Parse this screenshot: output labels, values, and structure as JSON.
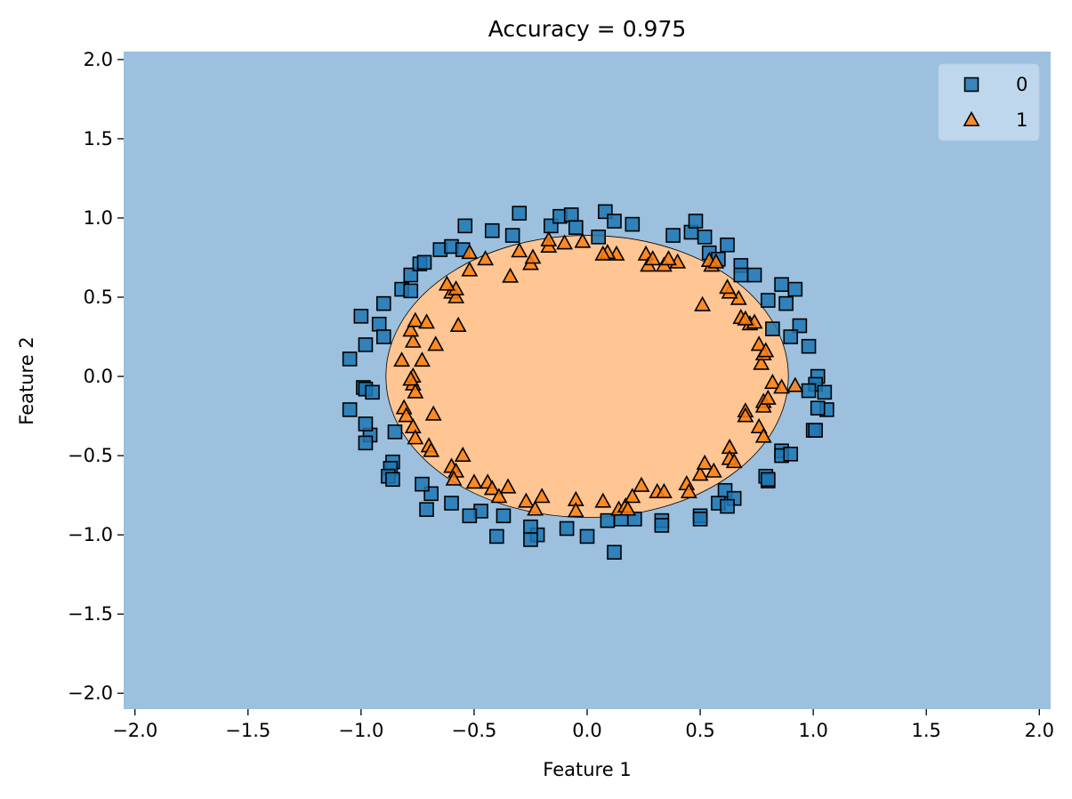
{
  "chart_data": {
    "type": "scatter",
    "title": "Accuracy = 0.975",
    "xlabel": "Feature 1",
    "ylabel": "Feature 2",
    "xlim": [
      -2.05,
      2.05
    ],
    "ylim": [
      -2.1,
      2.05
    ],
    "xticks": [
      "−2.0",
      "−1.5",
      "−1.0",
      "−0.5",
      "0.0",
      "0.5",
      "1.0",
      "1.5",
      "2.0"
    ],
    "xtick_values": [
      -2.0,
      -1.5,
      -1.0,
      -0.5,
      0.0,
      0.5,
      1.0,
      1.5,
      2.0
    ],
    "yticks": [
      "−2.0",
      "−1.5",
      "−1.0",
      "−0.5",
      "0.0",
      "0.5",
      "1.0",
      "1.5",
      "2.0"
    ],
    "ytick_values": [
      -2.0,
      -1.5,
      -1.0,
      -0.5,
      0.0,
      0.5,
      1.0,
      1.5,
      2.0
    ],
    "grid": false,
    "legend_position": "top-right",
    "decision_regions": {
      "background_class": "0",
      "background_color": "#9cc0de",
      "inner_class": "1",
      "inner_color": "#ffc592",
      "inner_shape": "ellipse",
      "center": [
        0.0,
        0.0
      ],
      "radius_x": 0.89,
      "radius_y": 0.89
    },
    "series": [
      {
        "name": "0",
        "marker": "square",
        "color": "#1f77b4",
        "points": [
          [
            -1.05,
            0.11
          ],
          [
            -1.0,
            0.38
          ],
          [
            -0.98,
            0.2
          ],
          [
            -0.9,
            0.46
          ],
          [
            -0.92,
            0.33
          ],
          [
            -0.9,
            0.25
          ],
          [
            -0.82,
            0.55
          ],
          [
            -0.78,
            0.64
          ],
          [
            -0.78,
            0.54
          ],
          [
            -0.74,
            0.71
          ],
          [
            -0.72,
            0.72
          ],
          [
            -0.65,
            0.8
          ],
          [
            -0.6,
            0.82
          ],
          [
            -0.55,
            0.8
          ],
          [
            -0.54,
            0.95
          ],
          [
            -0.42,
            0.92
          ],
          [
            -0.33,
            0.89
          ],
          [
            -0.3,
            1.03
          ],
          [
            -0.16,
            0.95
          ],
          [
            -0.12,
            1.01
          ],
          [
            -0.07,
            1.02
          ],
          [
            -0.05,
            0.94
          ],
          [
            0.05,
            0.88
          ],
          [
            0.08,
            1.04
          ],
          [
            0.12,
            0.98
          ],
          [
            0.2,
            0.96
          ],
          [
            0.38,
            0.89
          ],
          [
            0.46,
            0.91
          ],
          [
            0.48,
            0.98
          ],
          [
            0.52,
            0.88
          ],
          [
            0.54,
            0.78
          ],
          [
            0.58,
            0.74
          ],
          [
            0.62,
            0.83
          ],
          [
            0.68,
            0.7
          ],
          [
            0.74,
            0.64
          ],
          [
            0.68,
            0.64
          ],
          [
            0.8,
            0.48
          ],
          [
            0.86,
            0.58
          ],
          [
            0.92,
            0.55
          ],
          [
            0.88,
            0.46
          ],
          [
            0.82,
            0.3
          ],
          [
            0.94,
            0.32
          ],
          [
            0.9,
            0.25
          ],
          [
            0.98,
            0.19
          ],
          [
            1.02,
            0.0
          ],
          [
            1.01,
            -0.05
          ],
          [
            0.98,
            -0.09
          ],
          [
            1.05,
            -0.1
          ],
          [
            1.06,
            -0.21
          ],
          [
            1.02,
            -0.2
          ],
          [
            1.0,
            -0.34
          ],
          [
            1.01,
            -0.34
          ],
          [
            0.86,
            -0.47
          ],
          [
            0.86,
            -0.5
          ],
          [
            0.9,
            -0.49
          ],
          [
            0.79,
            -0.63
          ],
          [
            0.8,
            -0.66
          ],
          [
            0.8,
            -0.65
          ],
          [
            0.61,
            -0.72
          ],
          [
            0.65,
            -0.77
          ],
          [
            0.58,
            -0.8
          ],
          [
            0.62,
            -0.82
          ],
          [
            0.5,
            -0.88
          ],
          [
            0.5,
            -0.9
          ],
          [
            0.33,
            -0.91
          ],
          [
            0.33,
            -0.94
          ],
          [
            0.21,
            -0.9
          ],
          [
            0.15,
            -0.9
          ],
          [
            0.09,
            -0.91
          ],
          [
            0.12,
            -1.11
          ],
          [
            0.0,
            -1.01
          ],
          [
            -0.09,
            -0.96
          ],
          [
            -0.22,
            -1.0
          ],
          [
            -0.25,
            -0.95
          ],
          [
            -0.25,
            -1.03
          ],
          [
            -0.37,
            -0.88
          ],
          [
            -0.4,
            -1.01
          ],
          [
            -0.47,
            -0.85
          ],
          [
            -0.52,
            -0.88
          ],
          [
            -0.6,
            -0.8
          ],
          [
            -0.69,
            -0.74
          ],
          [
            -0.71,
            -0.84
          ],
          [
            -0.73,
            -0.68
          ],
          [
            -0.86,
            -0.54
          ],
          [
            -0.87,
            -0.58
          ],
          [
            -0.88,
            -0.63
          ],
          [
            -0.86,
            -0.65
          ],
          [
            -0.85,
            -0.35
          ],
          [
            -0.96,
            -0.37
          ],
          [
            -0.98,
            -0.3
          ],
          [
            -0.98,
            -0.42
          ],
          [
            -1.05,
            -0.21
          ],
          [
            -0.99,
            -0.07
          ],
          [
            -0.98,
            -0.08
          ],
          [
            -0.95,
            -0.1
          ]
        ]
      },
      {
        "name": "1",
        "marker": "triangle",
        "color": "#ff7f0e",
        "points": [
          [
            -0.82,
            0.1
          ],
          [
            -0.77,
            0.22
          ],
          [
            -0.78,
            0.29
          ],
          [
            -0.76,
            0.35
          ],
          [
            -0.71,
            0.34
          ],
          [
            -0.67,
            0.2
          ],
          [
            -0.73,
            0.1
          ],
          [
            -0.77,
            0.0
          ],
          [
            -0.77,
            -0.05
          ],
          [
            -0.78,
            -0.02
          ],
          [
            -0.76,
            -0.1
          ],
          [
            -0.81,
            -0.2
          ],
          [
            -0.8,
            -0.25
          ],
          [
            -0.77,
            -0.32
          ],
          [
            -0.76,
            -0.39
          ],
          [
            -0.7,
            -0.44
          ],
          [
            -0.69,
            -0.47
          ],
          [
            -0.68,
            -0.24
          ],
          [
            -0.6,
            -0.57
          ],
          [
            -0.58,
            -0.6
          ],
          [
            -0.59,
            -0.65
          ],
          [
            -0.55,
            -0.5
          ],
          [
            -0.5,
            -0.67
          ],
          [
            -0.44,
            -0.67
          ],
          [
            -0.42,
            -0.71
          ],
          [
            -0.39,
            -0.76
          ],
          [
            -0.35,
            -0.7
          ],
          [
            -0.27,
            -0.79
          ],
          [
            -0.23,
            -0.84
          ],
          [
            -0.2,
            -0.76
          ],
          [
            -0.05,
            -0.78
          ],
          [
            -0.05,
            -0.85
          ],
          [
            0.07,
            -0.79
          ],
          [
            0.14,
            -0.84
          ],
          [
            0.17,
            -0.82
          ],
          [
            0.2,
            -0.76
          ],
          [
            0.18,
            -0.84
          ],
          [
            0.24,
            -0.69
          ],
          [
            0.31,
            -0.73
          ],
          [
            0.34,
            -0.73
          ],
          [
            0.44,
            -0.68
          ],
          [
            0.45,
            -0.73
          ],
          [
            0.5,
            -0.62
          ],
          [
            0.52,
            -0.55
          ],
          [
            0.56,
            -0.6
          ],
          [
            0.63,
            -0.45
          ],
          [
            0.63,
            -0.52
          ],
          [
            0.65,
            -0.54
          ],
          [
            0.7,
            -0.22
          ],
          [
            0.7,
            -0.25
          ],
          [
            0.76,
            -0.32
          ],
          [
            0.78,
            -0.38
          ],
          [
            0.78,
            -0.16
          ],
          [
            0.78,
            -0.19
          ],
          [
            0.8,
            -0.14
          ],
          [
            0.82,
            -0.04
          ],
          [
            0.86,
            -0.07
          ],
          [
            0.92,
            -0.06
          ],
          [
            0.77,
            0.08
          ],
          [
            0.78,
            0.14
          ],
          [
            0.76,
            0.2
          ],
          [
            0.79,
            0.16
          ],
          [
            0.72,
            0.33
          ],
          [
            0.74,
            0.34
          ],
          [
            0.68,
            0.37
          ],
          [
            0.7,
            0.36
          ],
          [
            0.67,
            0.49
          ],
          [
            0.63,
            0.53
          ],
          [
            0.62,
            0.56
          ],
          [
            0.51,
            0.45
          ],
          [
            0.55,
            0.7
          ],
          [
            0.54,
            0.73
          ],
          [
            0.57,
            0.72
          ],
          [
            0.4,
            0.72
          ],
          [
            0.34,
            0.7
          ],
          [
            0.36,
            0.74
          ],
          [
            0.26,
            0.77
          ],
          [
            0.27,
            0.7
          ],
          [
            0.29,
            0.74
          ],
          [
            0.13,
            0.77
          ],
          [
            0.09,
            0.78
          ],
          [
            0.07,
            0.77
          ],
          [
            -0.02,
            0.85
          ],
          [
            -0.1,
            0.84
          ],
          [
            -0.17,
            0.82
          ],
          [
            -0.17,
            0.86
          ],
          [
            -0.3,
            0.79
          ],
          [
            -0.25,
            0.71
          ],
          [
            -0.24,
            0.75
          ],
          [
            -0.34,
            0.63
          ],
          [
            -0.45,
            0.74
          ],
          [
            -0.52,
            0.67
          ],
          [
            -0.52,
            0.78
          ],
          [
            -0.6,
            0.53
          ],
          [
            -0.58,
            0.5
          ],
          [
            -0.58,
            0.55
          ],
          [
            -0.62,
            0.58
          ],
          [
            -0.57,
            0.32
          ]
        ]
      }
    ]
  }
}
